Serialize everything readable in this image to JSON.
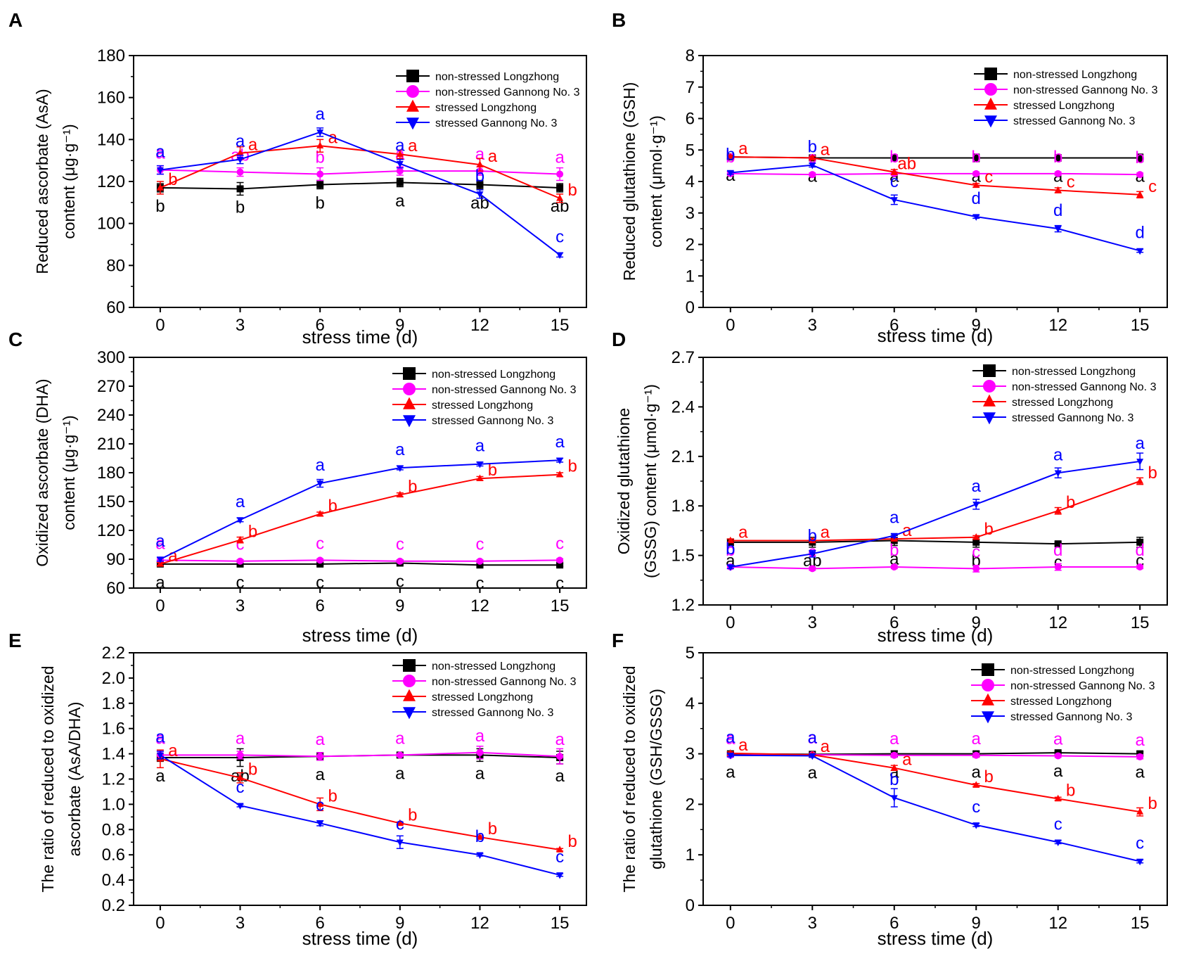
{
  "colors": {
    "non_stressed_longzhong": "#000000",
    "non_stressed_gannong": "#ff00ff",
    "stressed_longzhong": "#ff0000",
    "stressed_gannong": "#0000ff",
    "axis": "#000000"
  },
  "chart_data": [
    {
      "panel": "A",
      "type": "line",
      "title": "",
      "xlabel": "stress time (d)",
      "ylabel_lines": [
        "Reduced ascorbate (AsA)",
        "content (μg·g⁻¹)"
      ],
      "x": [
        0,
        3,
        6,
        9,
        12,
        15
      ],
      "xlim": [
        -1,
        16
      ],
      "ylim": [
        60,
        180
      ],
      "yticks": [
        60,
        80,
        100,
        120,
        140,
        160,
        180
      ],
      "ytick_labels": [
        "60",
        "80",
        "100",
        "120",
        "140",
        "160",
        "180"
      ],
      "legend_position": "top-right",
      "series": [
        {
          "name": "non-stressed Longzhong",
          "color": "#000000",
          "marker": "square",
          "values": [
            117,
            116.5,
            118.5,
            119.5,
            118.5,
            117
          ],
          "err": [
            2,
            3,
            2,
            2,
            2,
            2
          ],
          "letters": [
            "b",
            "b",
            "b",
            "a",
            "ab",
            "ab"
          ]
        },
        {
          "name": "non-stressed Gannong No. 3",
          "color": "#ff00ff",
          "marker": "circle",
          "values": [
            125.5,
            124.5,
            123.5,
            125,
            125,
            123.5
          ],
          "err": [
            2,
            2,
            3,
            2,
            2,
            3
          ],
          "letters": [
            "a",
            "ab",
            "b",
            "a",
            "a",
            "a"
          ]
        },
        {
          "name": "stressed Longzhong",
          "color": "#ff0000",
          "marker": "triangle-up",
          "values": [
            117,
            133.5,
            137,
            133,
            128,
            112
          ],
          "err": [
            3,
            3,
            3,
            2,
            3,
            2
          ],
          "letters": [
            "b",
            "a",
            "a",
            "a",
            "a",
            "b"
          ]
        },
        {
          "name": "stressed Gannong No. 3",
          "color": "#0000ff",
          "marker": "triangle-down",
          "values": [
            125.5,
            130.5,
            143.5,
            128.5,
            114,
            85
          ],
          "err": [
            2,
            2,
            2,
            2,
            2,
            1
          ],
          "letters": [
            "a",
            "a",
            "a",
            "a",
            "b",
            "c"
          ]
        }
      ]
    },
    {
      "panel": "B",
      "type": "line",
      "title": "",
      "xlabel": "stress time (d)",
      "ylabel_lines": [
        "Reduced glutathione (GSH)",
        "content (μmol·g⁻¹)"
      ],
      "x": [
        0,
        3,
        6,
        9,
        12,
        15
      ],
      "xlim": [
        -1,
        16
      ],
      "ylim": [
        0,
        8
      ],
      "yticks": [
        0,
        1,
        2,
        3,
        4,
        5,
        6,
        7,
        8
      ],
      "ytick_labels": [
        "0",
        "1",
        "2",
        "3",
        "4",
        "5",
        "6",
        "7",
        "8"
      ],
      "legend_position": "top-right",
      "series": [
        {
          "name": "non-stressed Longzhong",
          "color": "#000000",
          "marker": "square",
          "values": [
            4.78,
            4.75,
            4.75,
            4.75,
            4.75,
            4.75
          ],
          "err": [
            0.05,
            0.05,
            0.05,
            0.12,
            0.1,
            0.12
          ],
          "letters": [
            "a",
            "a",
            "a",
            "a",
            "a",
            "a"
          ]
        },
        {
          "name": "non-stressed Gannong No. 3",
          "color": "#ff00ff",
          "marker": "circle",
          "values": [
            4.25,
            4.22,
            4.25,
            4.25,
            4.25,
            4.22
          ],
          "err": [
            0.05,
            0.05,
            0.05,
            0.05,
            0.05,
            0.05
          ],
          "letters": [
            "b",
            "c",
            "b",
            "b",
            "b",
            "b"
          ]
        },
        {
          "name": "stressed Longzhong",
          "color": "#ff0000",
          "marker": "triangle-up",
          "values": [
            4.78,
            4.75,
            4.3,
            3.88,
            3.72,
            3.58
          ],
          "err": [
            0.05,
            0.05,
            0.08,
            0.06,
            0.08,
            0.1
          ],
          "letters": [
            "a",
            "a",
            "ab",
            "c",
            "c",
            "c"
          ]
        },
        {
          "name": "stressed Gannong No. 3",
          "color": "#0000ff",
          "marker": "triangle-down",
          "values": [
            4.28,
            4.52,
            3.42,
            2.88,
            2.5,
            1.8
          ],
          "err": [
            0.05,
            0.06,
            0.15,
            0.05,
            0.1,
            0.05
          ],
          "letters": [
            "b",
            "b",
            "c",
            "d",
            "d",
            "d"
          ]
        }
      ]
    },
    {
      "panel": "C",
      "type": "line",
      "title": "",
      "xlabel": "stress time (d)",
      "ylabel_lines": [
        "Oxidized ascorbate (DHA)",
        "content (μg·g⁻¹)"
      ],
      "x": [
        0,
        3,
        6,
        9,
        12,
        15
      ],
      "xlim": [
        -1,
        16
      ],
      "ylim": [
        60,
        300
      ],
      "yticks": [
        60,
        90,
        120,
        150,
        180,
        210,
        240,
        270,
        300
      ],
      "ytick_labels": [
        "60",
        "90",
        "120",
        "150",
        "180",
        "210",
        "240",
        "270",
        "300"
      ],
      "legend_position": "top-right",
      "series": [
        {
          "name": "non-stressed Longzhong",
          "color": "#000000",
          "marker": "square",
          "values": [
            85,
            85,
            85,
            86,
            84,
            84
          ],
          "err": [
            1.5,
            1.5,
            1.5,
            1.5,
            1.5,
            1.5
          ],
          "letters": [
            "a",
            "c",
            "c",
            "c",
            "c",
            "c"
          ]
        },
        {
          "name": "non-stressed Gannong No. 3",
          "color": "#ff00ff",
          "marker": "circle",
          "values": [
            89,
            88,
            89,
            88,
            88,
            89
          ],
          "err": [
            1.5,
            1.5,
            1.5,
            1.5,
            1.5,
            1.5
          ],
          "letters": [
            "a",
            "c",
            "c",
            "c",
            "c",
            "c"
          ]
        },
        {
          "name": "stressed Longzhong",
          "color": "#ff0000",
          "marker": "triangle-up",
          "values": [
            85,
            110,
            137,
            157,
            174,
            178
          ],
          "err": [
            1.5,
            3,
            2,
            2,
            2,
            2
          ],
          "letters": [
            "a",
            "b",
            "b",
            "b",
            "b",
            "b"
          ]
        },
        {
          "name": "stressed Gannong No. 3",
          "color": "#0000ff",
          "marker": "triangle-down",
          "values": [
            90,
            131,
            169,
            185,
            189,
            193
          ],
          "err": [
            2,
            2,
            4,
            2,
            2,
            2
          ],
          "letters": [
            "a",
            "a",
            "a",
            "a",
            "a",
            "a"
          ]
        }
      ]
    },
    {
      "panel": "D",
      "type": "line",
      "title": "",
      "xlabel": "stress time (d)",
      "ylabel_lines": [
        "Oxidized glutathione",
        "(GSSG) content (μmol·g⁻¹)"
      ],
      "x": [
        0,
        3,
        6,
        9,
        12,
        15
      ],
      "xlim": [
        -1,
        16
      ],
      "ylim": [
        1.2,
        2.7
      ],
      "yticks": [
        1.2,
        1.5,
        1.8,
        2.1,
        2.4,
        2.7
      ],
      "ytick_labels": [
        "1.2",
        "1.5",
        "1.8",
        "2.1",
        "2.4",
        "2.7"
      ],
      "legend_position": "top-right",
      "series": [
        {
          "name": "non-stressed Longzhong",
          "color": "#000000",
          "marker": "square",
          "values": [
            1.58,
            1.58,
            1.59,
            1.58,
            1.57,
            1.58
          ],
          "err": [
            0.02,
            0.03,
            0.03,
            0.03,
            0.01,
            0.03
          ],
          "letters": [
            "a",
            "ab",
            "a",
            "b",
            "c",
            "c"
          ]
        },
        {
          "name": "non-stressed Gannong No. 3",
          "color": "#ff00ff",
          "marker": "circle",
          "values": [
            1.43,
            1.42,
            1.43,
            1.42,
            1.43,
            1.43
          ],
          "err": [
            0.01,
            0.01,
            0.01,
            0.02,
            0.02,
            0.01
          ],
          "letters": [
            "b",
            "c",
            "b",
            "c",
            "d",
            "d"
          ]
        },
        {
          "name": "stressed Longzhong",
          "color": "#ff0000",
          "marker": "triangle-up",
          "values": [
            1.59,
            1.59,
            1.6,
            1.61,
            1.77,
            1.95
          ],
          "err": [
            0.01,
            0.01,
            0.01,
            0.01,
            0.02,
            0.02
          ],
          "letters": [
            "a",
            "a",
            "a",
            "b",
            "b",
            "b"
          ]
        },
        {
          "name": "stressed Gannong No. 3",
          "color": "#0000ff",
          "marker": "triangle-down",
          "values": [
            1.43,
            1.51,
            1.62,
            1.81,
            2.0,
            2.07
          ],
          "err": [
            0.01,
            0.02,
            0.01,
            0.03,
            0.03,
            0.05
          ],
          "letters": [
            "b",
            "b",
            "a",
            "a",
            "a",
            "a"
          ]
        }
      ]
    },
    {
      "panel": "E",
      "type": "line",
      "title": "",
      "xlabel": "stress time (d)",
      "ylabel_lines": [
        "The ratio of reduced to oxidized",
        "ascorbate (AsA/DHA)"
      ],
      "x": [
        0,
        3,
        6,
        9,
        12,
        15
      ],
      "xlim": [
        -1,
        16
      ],
      "ylim": [
        0.2,
        2.2
      ],
      "yticks": [
        0.2,
        0.4,
        0.6,
        0.8,
        1.0,
        1.2,
        1.4,
        1.6,
        1.8,
        2.0,
        2.2
      ],
      "ytick_labels": [
        "0.2",
        "0.4",
        "0.6",
        "0.8",
        "1.0",
        "1.2",
        "1.4",
        "1.6",
        "1.8",
        "2.0",
        "2.2"
      ],
      "legend_position": "top-right",
      "series": [
        {
          "name": "non-stressed Longzhong",
          "color": "#000000",
          "marker": "square",
          "values": [
            1.37,
            1.37,
            1.38,
            1.39,
            1.39,
            1.37
          ],
          "err": [
            0.03,
            0.07,
            0.03,
            0.01,
            0.05,
            0.05
          ],
          "letters": [
            "a",
            "ab",
            "a",
            "a",
            "a",
            "a"
          ]
        },
        {
          "name": "non-stressed Gannong No. 3",
          "color": "#ff00ff",
          "marker": "circle",
          "values": [
            1.39,
            1.39,
            1.38,
            1.39,
            1.41,
            1.38
          ],
          "err": [
            0.03,
            0.03,
            0.03,
            0.01,
            0.05,
            0.06
          ],
          "letters": [
            "a",
            "a",
            "a",
            "a",
            "a",
            "a"
          ]
        },
        {
          "name": "stressed Longzhong",
          "color": "#ff0000",
          "marker": "triangle-up",
          "values": [
            1.36,
            1.21,
            1.0,
            0.85,
            0.74,
            0.64
          ],
          "err": [
            0.07,
            0.04,
            0.05,
            0.01,
            0.01,
            0.01
          ],
          "letters": [
            "a",
            "b",
            "b",
            "b",
            "b",
            "b"
          ]
        },
        {
          "name": "stressed Gannong No. 3",
          "color": "#0000ff",
          "marker": "triangle-down",
          "values": [
            1.39,
            0.99,
            0.85,
            0.7,
            0.6,
            0.44
          ],
          "err": [
            0.03,
            0.01,
            0.02,
            0.05,
            0.01,
            0.01
          ],
          "letters": [
            "a",
            "c",
            "c",
            "c",
            "b",
            "c"
          ]
        }
      ]
    },
    {
      "panel": "F",
      "type": "line",
      "title": "",
      "xlabel": "stress time (d)",
      "ylabel_lines": [
        "The ratio of reduced to oxidized",
        "glutathione (GSH/GSSG)"
      ],
      "x": [
        0,
        3,
        6,
        9,
        12,
        15
      ],
      "xlim": [
        -1,
        16
      ],
      "ylim": [
        0,
        5
      ],
      "yticks": [
        0,
        1,
        2,
        3,
        4,
        5
      ],
      "ytick_labels": [
        "0",
        "1",
        "2",
        "3",
        "4",
        "5"
      ],
      "legend_position": "top-right",
      "series": [
        {
          "name": "non-stressed Longzhong",
          "color": "#000000",
          "marker": "square",
          "values": [
            3.0,
            2.99,
            3.0,
            3.0,
            3.02,
            3.0
          ],
          "err": [
            0.03,
            0.03,
            0.06,
            0.05,
            0.03,
            0.04
          ],
          "letters": [
            "a",
            "a",
            "a",
            "a",
            "a",
            "a"
          ]
        },
        {
          "name": "non-stressed Gannong No. 3",
          "color": "#ff00ff",
          "marker": "circle",
          "values": [
            2.97,
            2.98,
            2.97,
            2.97,
            2.96,
            2.94
          ],
          "err": [
            0.03,
            0.03,
            0.04,
            0.04,
            0.03,
            0.04
          ],
          "letters": [
            "a",
            "a",
            "a",
            "a",
            "a",
            "a"
          ]
        },
        {
          "name": "stressed Longzhong",
          "color": "#ff0000",
          "marker": "triangle-up",
          "values": [
            3.01,
            2.98,
            2.72,
            2.38,
            2.11,
            1.85
          ],
          "err": [
            0.03,
            0.03,
            0.05,
            0.03,
            0.03,
            0.08
          ],
          "letters": [
            "a",
            "a",
            "a",
            "b",
            "b",
            "b"
          ]
        },
        {
          "name": "stressed Gannong No. 3",
          "color": "#0000ff",
          "marker": "triangle-down",
          "values": [
            2.97,
            2.96,
            2.13,
            1.59,
            1.25,
            0.87
          ],
          "err": [
            0.03,
            0.03,
            0.18,
            0.03,
            0.03,
            0.03
          ],
          "letters": [
            "a",
            "a",
            "b",
            "c",
            "c",
            "c"
          ]
        }
      ]
    }
  ]
}
